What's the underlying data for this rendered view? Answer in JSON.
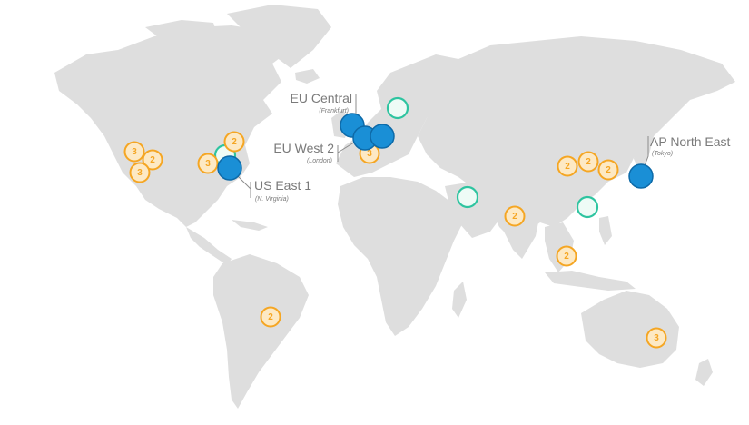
{
  "map": {
    "colors": {
      "land": "#dedede",
      "region": "#1a8fd6",
      "planned": "#2ec4a0",
      "edge_location": "#f5a623",
      "label": "#7a7a7a"
    },
    "regions": [
      {
        "id": "eu-central",
        "name": "EU Central",
        "city": "(Frankfurt)"
      },
      {
        "id": "eu-west-2",
        "name": "EU West 2",
        "city": "(London)"
      },
      {
        "id": "us-east-1",
        "name": "US East 1",
        "city": "(N. Virginia)"
      },
      {
        "id": "ap-north-east",
        "name": "AP North East",
        "city": "(Tokyo)"
      }
    ],
    "edge_badges": [
      "3",
      "2",
      "3",
      "2",
      "3",
      "3",
      "2",
      "2",
      "2",
      "2",
      "2",
      "2",
      "3",
      "3"
    ],
    "planned_marker_count": 5
  }
}
